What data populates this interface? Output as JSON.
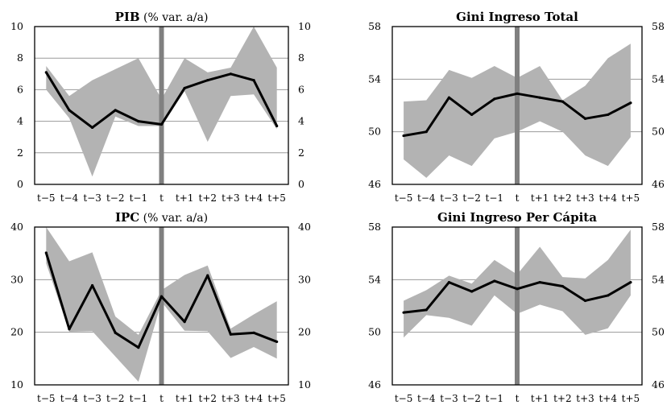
{
  "chart_data": [
    {
      "type": "line",
      "title": "PIB",
      "subtitle": "(% var. a/a)",
      "categories": [
        "t−5",
        "t−4",
        "t−3",
        "t−2",
        "t−1",
        "t",
        "t+1",
        "t+2",
        "t+3",
        "t+4",
        "t+5"
      ],
      "series": [
        {
          "values": [
            7.1,
            4.7,
            3.6,
            4.7,
            4.0,
            3.8,
            6.1,
            6.6,
            7.0,
            6.6,
            3.7
          ]
        }
      ],
      "band_upper": [
        7.5,
        5.6,
        6.6,
        7.3,
        8.0,
        5.4,
        8.0,
        7.1,
        7.4,
        10.0,
        7.4
      ],
      "band_lower": [
        6.0,
        4.2,
        0.5,
        4.3,
        3.7,
        3.7,
        5.9,
        2.7,
        5.6,
        5.7,
        3.5
      ],
      "ylim": [
        0,
        10
      ],
      "yticks": [
        0,
        2,
        4,
        6,
        8,
        10
      ],
      "grid": true,
      "marker_at": "t"
    },
    {
      "type": "line",
      "title": "Gini Ingreso Total",
      "subtitle": "",
      "categories": [
        "t−5",
        "t−4",
        "t−3",
        "t−2",
        "t−1",
        "t",
        "t+1",
        "t+2",
        "t+3",
        "t+4",
        "t+5"
      ],
      "series": [
        {
          "values": [
            49.7,
            50.0,
            52.6,
            51.3,
            52.5,
            52.9,
            52.6,
            52.3,
            51.0,
            51.3,
            52.2
          ]
        }
      ],
      "band_upper": [
        52.3,
        52.4,
        54.7,
        54.1,
        55.0,
        54.1,
        55.0,
        52.4,
        53.5,
        55.6,
        56.7
      ],
      "band_lower": [
        47.9,
        46.5,
        48.2,
        47.4,
        49.5,
        50.0,
        50.8,
        50.0,
        48.2,
        47.4,
        49.6
      ],
      "ylim": [
        46,
        58
      ],
      "yticks": [
        46,
        50,
        54,
        58
      ],
      "grid": true,
      "marker_at": "t"
    },
    {
      "type": "line",
      "title": "IPC",
      "subtitle": "(% var. a/a)",
      "categories": [
        "t−5",
        "t−4",
        "t−3",
        "t−2",
        "t−1",
        "t",
        "t+1",
        "t+2",
        "t+3",
        "t+4",
        "t+5"
      ],
      "series": [
        {
          "values": [
            35.1,
            20.6,
            28.9,
            19.9,
            17.1,
            26.8,
            22.0,
            30.8,
            19.6,
            19.9,
            18.2
          ]
        }
      ],
      "band_upper": [
        40.0,
        33.5,
        35.2,
        23.0,
        19.5,
        28.0,
        30.9,
        32.7,
        20.7,
        23.4,
        25.9
      ],
      "band_lower": [
        33.1,
        20.1,
        20.2,
        15.4,
        10.6,
        25.8,
        20.3,
        20.2,
        15.1,
        17.2,
        15.0
      ],
      "ylim": [
        10,
        40
      ],
      "yticks": [
        10,
        20,
        30,
        40
      ],
      "grid": true,
      "marker_at": "t"
    },
    {
      "type": "line",
      "title": "Gini Ingreso Per Cápita",
      "subtitle": "",
      "categories": [
        "t−5",
        "t−4",
        "t−3",
        "t−2",
        "t−1",
        "t",
        "t+1",
        "t+2",
        "t+3",
        "t+4",
        "t+5"
      ],
      "series": [
        {
          "values": [
            51.5,
            51.7,
            53.8,
            53.1,
            53.9,
            53.3,
            53.8,
            53.5,
            52.4,
            52.8,
            53.8
          ]
        }
      ],
      "band_upper": [
        52.4,
        53.2,
        54.3,
        53.7,
        55.5,
        54.4,
        56.5,
        54.2,
        54.1,
        55.5,
        57.8
      ],
      "band_lower": [
        49.6,
        51.3,
        51.1,
        50.5,
        52.8,
        51.4,
        52.1,
        51.6,
        49.8,
        50.3,
        52.8
      ],
      "ylim": [
        46,
        58
      ],
      "yticks": [
        46,
        50,
        54,
        58
      ],
      "grid": true,
      "marker_at": "t"
    }
  ]
}
